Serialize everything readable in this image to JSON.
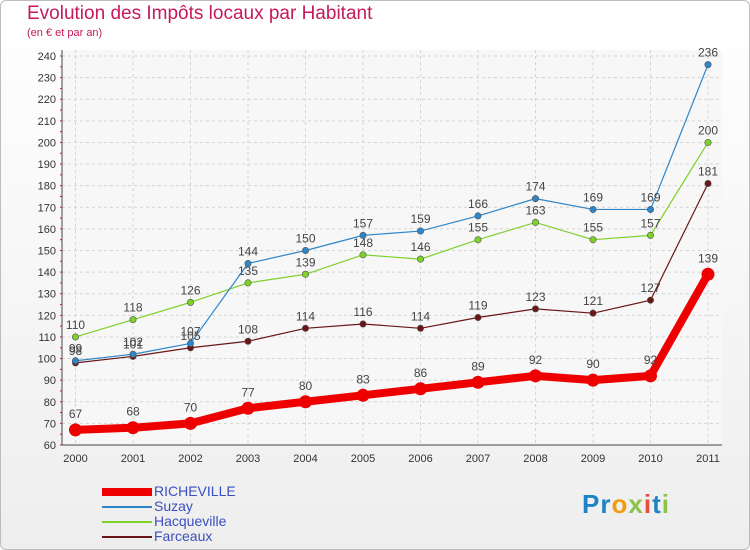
{
  "header": {
    "title": "Evolution des Impôts locaux par Habitant",
    "subtitle": "(en € et par an)"
  },
  "logo": {
    "text": "Proxiti",
    "colors": [
      "#1f84c6",
      "#1f84c6",
      "#f39c12",
      "#8bc34a",
      "#e74c3c",
      "#1f84c6",
      "#8bc34a"
    ]
  },
  "chart_data": {
    "type": "line",
    "title": "Evolution des Impôts locaux par Habitant",
    "subtitle": "(en € et par an)",
    "xlabel": "",
    "ylabel": "",
    "x": [
      "2000",
      "2001",
      "2002",
      "2003",
      "2004",
      "2005",
      "2006",
      "2007",
      "2008",
      "2009",
      "2010",
      "2011"
    ],
    "ylim": [
      60,
      240
    ],
    "yticks": [
      60,
      70,
      80,
      90,
      100,
      110,
      120,
      130,
      140,
      150,
      160,
      170,
      180,
      190,
      200,
      210,
      220,
      230,
      240
    ],
    "grid": true,
    "legend_position": "bottom-left",
    "series": [
      {
        "name": "RICHEVILLE",
        "color": "#ee0000",
        "values": [
          67,
          68,
          70,
          77,
          80,
          83,
          86,
          89,
          92,
          90,
          92,
          139
        ]
      },
      {
        "name": "Suzay",
        "color": "#2e86c8",
        "values": [
          99,
          102,
          107,
          144,
          150,
          157,
          159,
          166,
          174,
          169,
          169,
          236
        ]
      },
      {
        "name": "Hacqueville",
        "color": "#7ed12b",
        "values": [
          110,
          118,
          126,
          135,
          139,
          148,
          146,
          155,
          163,
          155,
          157,
          200
        ]
      },
      {
        "name": "Farceaux",
        "color": "#6b1616",
        "values": [
          98,
          101,
          105,
          108,
          114,
          116,
          114,
          119,
          123,
          121,
          127,
          181
        ]
      }
    ]
  }
}
